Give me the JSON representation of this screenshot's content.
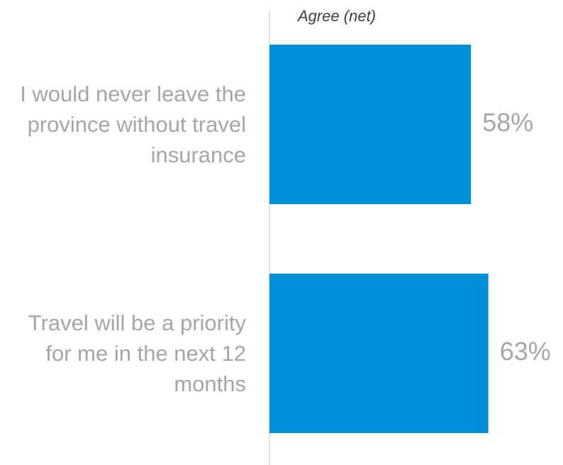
{
  "chart_data": {
    "type": "bar",
    "orientation": "horizontal",
    "axis_label": "Agree (net)",
    "categories": [
      "I would never leave the province without travel insurance",
      "Travel will be a priority for me in the next 12 months"
    ],
    "values": [
      58,
      63
    ],
    "value_labels": [
      "58%",
      "63%"
    ],
    "color": "#0090d9",
    "xlim": [
      0,
      100
    ]
  }
}
